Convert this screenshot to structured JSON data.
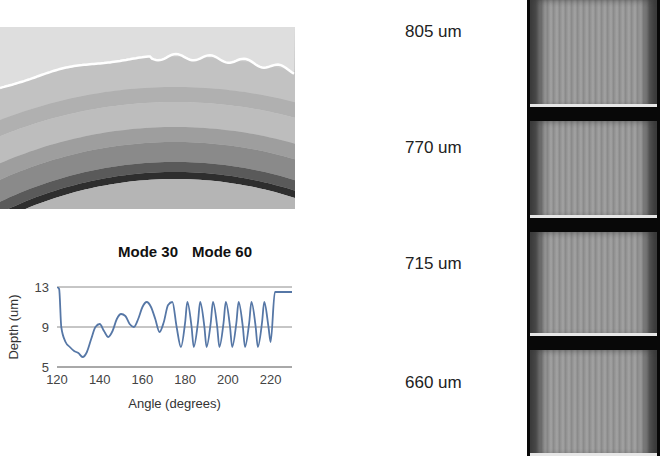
{
  "chart_data": {
    "type": "line",
    "x_label": "Angle (degrees)",
    "y_label": "Depth (um)",
    "annotations": [
      "Mode 30",
      "Mode 60"
    ],
    "x": [
      120,
      121,
      122,
      124,
      126,
      128,
      130,
      132,
      134,
      136,
      138,
      140,
      142,
      144,
      146,
      148,
      150,
      152,
      154,
      156,
      158,
      160,
      162,
      164,
      166,
      168,
      170,
      172,
      174,
      176,
      178,
      180,
      181,
      183,
      184,
      186,
      187,
      189,
      190,
      192,
      193,
      195,
      196,
      198,
      199,
      201,
      202,
      204,
      205,
      207,
      208,
      210,
      211,
      213,
      214,
      216,
      217,
      219,
      220,
      222,
      230
    ],
    "values": [
      13,
      12.8,
      9,
      7.5,
      7,
      6.6,
      6.4,
      6,
      6.5,
      7.8,
      9,
      9.3,
      8.6,
      8,
      8.6,
      9.8,
      10.3,
      10.1,
      9.3,
      9,
      9.8,
      11,
      11.5,
      11,
      9.8,
      8.5,
      9.5,
      11.2,
      11.5,
      9,
      7,
      9.5,
      11.5,
      9,
      7,
      9.5,
      11.5,
      9,
      7,
      9.5,
      11.5,
      9,
      7,
      9.5,
      11.5,
      9,
      7,
      9.5,
      11.5,
      9,
      7,
      9.5,
      11.5,
      9,
      7,
      9.5,
      11.5,
      9,
      7.5,
      12.5,
      12.5
    ],
    "color": "#5677a6",
    "xlim": [
      120,
      230
    ],
    "xticks": [
      120,
      140,
      160,
      180,
      200,
      220
    ],
    "ylim": [
      5,
      13
    ],
    "yticks": [
      5,
      9,
      13
    ],
    "grid": true
  },
  "image_stack": {
    "labels": [
      "805 um",
      "770 um",
      "715 um",
      "660 um"
    ]
  }
}
